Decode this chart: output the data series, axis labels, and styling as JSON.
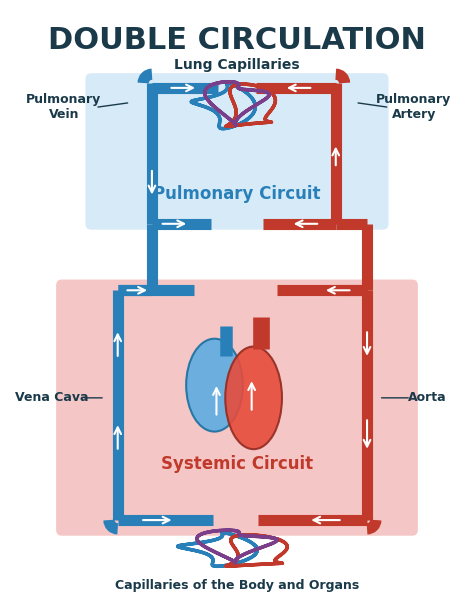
{
  "title": "DOUBLE CIRCULATION",
  "title_color": "#1a3a4a",
  "title_fontsize": 22,
  "bg_color": "#ffffff",
  "light_blue_bg": "#d6eaf8",
  "light_red_bg": "#f5c6c6",
  "pulmonary_circuit_label": "Pulmonary Circuit",
  "systemic_circuit_label": "Systemic Circuit",
  "lung_cap_label": "Lung Capillaries",
  "body_cap_label": "Capillaries of the Body and Organs",
  "pulmonary_vein_label": "Pulmonary\nVein",
  "pulmonary_artery_label": "Pulmonary\nArtery",
  "vena_cava_label": "Vena Cava",
  "aorta_label": "Aorta",
  "blue_vessel": "#2980b9",
  "red_vessel": "#c0392b",
  "white_arrow": "#ffffff",
  "heart_left_color": "#e74c3c",
  "heart_right_color": "#5dade2",
  "label_color": "#1a3a4a",
  "label_fontsize": 9,
  "circuit_label_fontsize": 12,
  "lw_vessel": 8
}
